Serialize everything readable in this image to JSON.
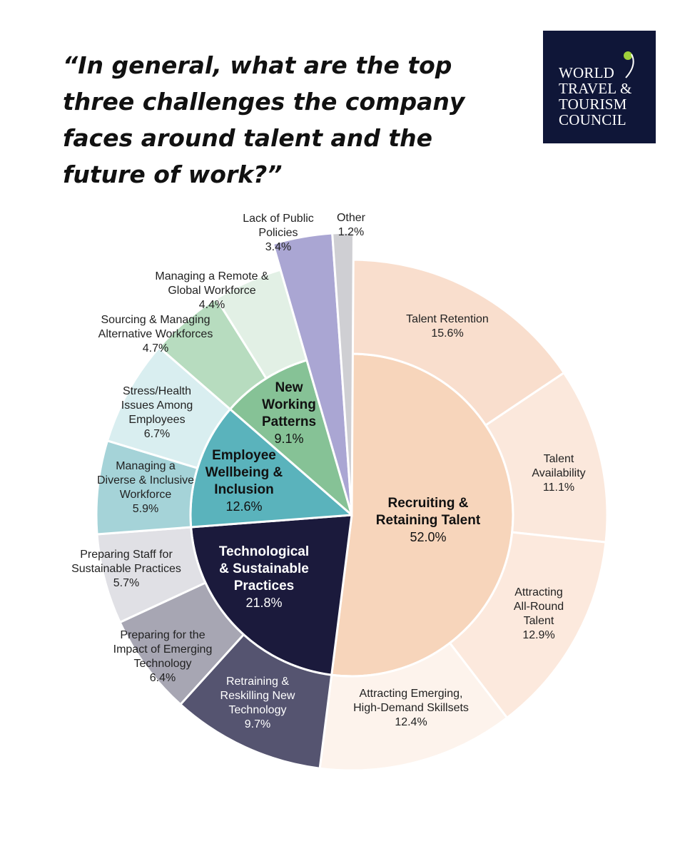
{
  "title": "“In general, what are the top three challenges the company faces around talent and the future of work?”",
  "logo": {
    "lines": [
      "WORLD",
      "TRAVEL &",
      "TOURISM",
      "COUNCIL"
    ],
    "background": "#0f1638",
    "accent": "#9fd13b"
  },
  "chart_data": {
    "type": "sunburst",
    "unit": "%",
    "inner": [
      {
        "name": "Recruiting & Retaining Talent",
        "lines": [
          "Recruiting &",
          "Retaining Talent"
        ],
        "value": 52.0,
        "label": "52.0%",
        "color": "#f7d5bb"
      },
      {
        "name": "Technological & Sustainable Practices",
        "lines": [
          "Technological",
          "& Sustainable",
          "Practices"
        ],
        "value": 21.8,
        "label": "21.8%",
        "color": "#1b1a3c"
      },
      {
        "name": "Employee Wellbeing & Inclusion",
        "lines": [
          "Employee",
          "Wellbeing &",
          "Inclusion"
        ],
        "value": 12.6,
        "label": "12.6%",
        "color": "#5ab3bc"
      },
      {
        "name": "New Working Patterns",
        "lines": [
          "New",
          "Working",
          "Patterns"
        ],
        "value": 9.1,
        "label": "9.1%",
        "color": "#86c296"
      }
    ],
    "outer": [
      {
        "parent": "Recruiting & Retaining Talent",
        "name": "Talent Retention",
        "lines": [
          "Talent Retention"
        ],
        "value": 15.6,
        "label": "15.6%",
        "color": "#f9decd"
      },
      {
        "parent": "Recruiting & Retaining Talent",
        "name": "Talent Availability",
        "lines": [
          "Talent",
          "Availability"
        ],
        "value": 11.1,
        "label": "11.1%",
        "color": "#fbe8dc"
      },
      {
        "parent": "Recruiting & Retaining Talent",
        "name": "Attracting All-Round Talent",
        "lines": [
          "Attracting",
          "All-Round",
          "Talent"
        ],
        "value": 12.9,
        "label": "12.9%",
        "color": "#fce9dd"
      },
      {
        "parent": "Recruiting & Retaining Talent",
        "name": "Attracting Emerging, High-Demand Skillsets",
        "lines": [
          "Attracting Emerging,",
          "High-Demand Skillsets"
        ],
        "value": 12.4,
        "label": "12.4%",
        "color": "#fdf3ec"
      },
      {
        "parent": "Technological & Sustainable Practices",
        "name": "Retraining & Reskilling New Technology",
        "lines": [
          "Retraining &",
          "Reskilling New",
          "Technology"
        ],
        "value": 9.7,
        "label": "9.7%",
        "color": "#555470"
      },
      {
        "parent": "Technological & Sustainable Practices",
        "name": "Preparing for the Impact of Emerging Technology",
        "lines": [
          "Preparing for the",
          "Impact of Emerging",
          "Technology"
        ],
        "value": 6.4,
        "label": "6.4%",
        "color": "#a7a6b3"
      },
      {
        "parent": "Technological & Sustainable Practices",
        "name": "Preparing Staff for Sustainable Practices",
        "lines": [
          "Preparing Staff for",
          "Sustainable Practices"
        ],
        "value": 5.7,
        "label": "5.7%",
        "color": "#e0e0e5"
      },
      {
        "parent": "Employee Wellbeing & Inclusion",
        "name": "Managing a Diverse & Inclusive Workforce",
        "lines": [
          "Managing a",
          "Diverse & Inclusive",
          "Workforce"
        ],
        "value": 5.9,
        "label": "5.9%",
        "color": "#a5d3d8"
      },
      {
        "parent": "Employee Wellbeing & Inclusion",
        "name": "Stress/Health Issues Among Employees",
        "lines": [
          "Stress/Health",
          "Issues Among",
          "Employees"
        ],
        "value": 6.7,
        "label": "6.7%",
        "color": "#d9eef0"
      },
      {
        "parent": "New Working Patterns",
        "name": "Sourcing & Managing Alternative Workforces",
        "lines": [
          "Sourcing & Managing",
          "Alternative Workforces"
        ],
        "value": 4.7,
        "label": "4.7%",
        "color": "#b7dcbf"
      },
      {
        "parent": "New Working Patterns",
        "name": "Managing a Remote & Global Workforce",
        "lines": [
          "Managing a Remote &",
          "Global Workforce"
        ],
        "value": 4.4,
        "label": "4.4%",
        "color": "#e2f0e5"
      }
    ],
    "exploded": [
      {
        "name": "Lack of Public Policies",
        "lines": [
          "Lack of Public",
          "Policies"
        ],
        "value": 3.4,
        "label": "3.4%",
        "color": "#aaa6d3"
      },
      {
        "name": "Other",
        "lines": [
          "Other"
        ],
        "value": 1.2,
        "label": "1.2%",
        "color": "#cfcfd3"
      }
    ]
  }
}
